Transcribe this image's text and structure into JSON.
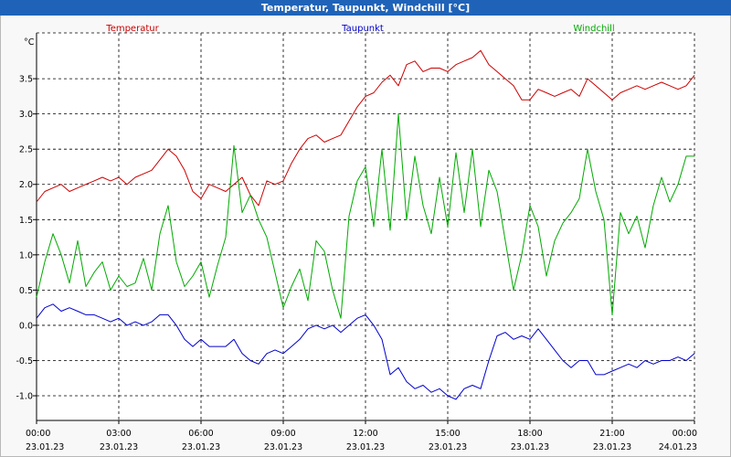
{
  "window": {
    "title": "Temperatur, Taupunkt, Windchill [°C]"
  },
  "chart_data": {
    "type": "line",
    "title": "Temperatur, Taupunkt, Windchill [°C]",
    "ylabel": "°C",
    "ylim": [
      -1.35,
      4.15
    ],
    "yticks": [
      "3.5",
      "3.0",
      "2.5",
      "2.0",
      "1.5",
      "1.0",
      "0.5",
      "0.0",
      "-0.5",
      "-1.0"
    ],
    "ytick_values": [
      3.5,
      3.0,
      2.5,
      2.0,
      1.5,
      1.0,
      0.5,
      0.0,
      -0.5,
      -1.0
    ],
    "xlim": [
      0,
      24
    ],
    "xtick_values": [
      0,
      3,
      6,
      9,
      12,
      15,
      18,
      21,
      24
    ],
    "xticks_time": [
      "00:00",
      "03:00",
      "06:00",
      "09:00",
      "12:00",
      "15:00",
      "18:00",
      "21:00",
      "00:00"
    ],
    "xticks_date": [
      "23.01.23",
      "23.01.23",
      "23.01.23",
      "23.01.23",
      "23.01.23",
      "23.01.23",
      "23.01.23",
      "23.01.23",
      "24.01.23"
    ],
    "grid": true,
    "legend_position": "top",
    "series": [
      {
        "name": "Temperatur",
        "color": "#cc0000",
        "x": [
          0,
          0.3,
          0.6,
          0.9,
          1.2,
          1.5,
          1.8,
          2.1,
          2.4,
          2.7,
          3.0,
          3.3,
          3.6,
          3.9,
          4.2,
          4.5,
          4.8,
          5.1,
          5.4,
          5.7,
          6.0,
          6.3,
          6.6,
          6.9,
          7.2,
          7.5,
          7.8,
          8.1,
          8.4,
          8.7,
          9.0,
          9.3,
          9.6,
          9.9,
          10.2,
          10.5,
          10.8,
          11.1,
          11.4,
          11.7,
          12.0,
          12.3,
          12.6,
          12.9,
          13.2,
          13.5,
          13.8,
          14.1,
          14.4,
          14.7,
          15.0,
          15.3,
          15.6,
          15.9,
          16.2,
          16.5,
          16.8,
          17.1,
          17.4,
          17.7,
          18.0,
          18.3,
          18.6,
          18.9,
          19.2,
          19.5,
          19.8,
          20.1,
          20.4,
          20.7,
          21.0,
          21.3,
          21.6,
          21.9,
          22.2,
          22.5,
          22.8,
          23.1,
          23.4,
          23.7,
          24.0
        ],
        "values": [
          1.75,
          1.9,
          1.95,
          2.0,
          1.9,
          1.95,
          2.0,
          2.05,
          2.1,
          2.05,
          2.1,
          2.0,
          2.1,
          2.15,
          2.2,
          2.35,
          2.5,
          2.4,
          2.2,
          1.9,
          1.8,
          2.0,
          1.95,
          1.9,
          2.0,
          2.1,
          1.85,
          1.7,
          2.05,
          2.0,
          2.05,
          2.3,
          2.5,
          2.65,
          2.7,
          2.6,
          2.65,
          2.7,
          2.9,
          3.1,
          3.25,
          3.3,
          3.45,
          3.55,
          3.4,
          3.7,
          3.75,
          3.6,
          3.65,
          3.65,
          3.6,
          3.7,
          3.75,
          3.8,
          3.9,
          3.7,
          3.6,
          3.5,
          3.4,
          3.2,
          3.2,
          3.35,
          3.3,
          3.25,
          3.3,
          3.35,
          3.25,
          3.5,
          3.4,
          3.3,
          3.2,
          3.3,
          3.35,
          3.4,
          3.35,
          3.4,
          3.45,
          3.4,
          3.35,
          3.4,
          3.55
        ]
      },
      {
        "name": "Taupunkt",
        "color": "#0000cc",
        "x": [
          0,
          0.3,
          0.6,
          0.9,
          1.2,
          1.5,
          1.8,
          2.1,
          2.4,
          2.7,
          3.0,
          3.3,
          3.6,
          3.9,
          4.2,
          4.5,
          4.8,
          5.1,
          5.4,
          5.7,
          6.0,
          6.3,
          6.6,
          6.9,
          7.2,
          7.5,
          7.8,
          8.1,
          8.4,
          8.7,
          9.0,
          9.3,
          9.6,
          9.9,
          10.2,
          10.5,
          10.8,
          11.1,
          11.4,
          11.7,
          12.0,
          12.3,
          12.6,
          12.9,
          13.2,
          13.5,
          13.8,
          14.1,
          14.4,
          14.7,
          15.0,
          15.3,
          15.6,
          15.9,
          16.2,
          16.5,
          16.8,
          17.1,
          17.4,
          17.7,
          18.0,
          18.3,
          18.6,
          18.9,
          19.2,
          19.5,
          19.8,
          20.1,
          20.4,
          20.7,
          21.0,
          21.3,
          21.6,
          21.9,
          22.2,
          22.5,
          22.8,
          23.1,
          23.4,
          23.7,
          24.0
        ],
        "values": [
          0.1,
          0.25,
          0.3,
          0.2,
          0.25,
          0.2,
          0.15,
          0.15,
          0.1,
          0.05,
          0.1,
          0.0,
          0.05,
          0.0,
          0.05,
          0.15,
          0.15,
          0.0,
          -0.2,
          -0.3,
          -0.2,
          -0.3,
          -0.3,
          -0.3,
          -0.2,
          -0.4,
          -0.5,
          -0.55,
          -0.4,
          -0.35,
          -0.4,
          -0.3,
          -0.2,
          -0.05,
          0.0,
          -0.05,
          0.0,
          -0.1,
          0.0,
          0.1,
          0.15,
          0.0,
          -0.2,
          -0.7,
          -0.6,
          -0.8,
          -0.9,
          -0.85,
          -0.95,
          -0.9,
          -1.0,
          -1.05,
          -0.9,
          -0.85,
          -0.9,
          -0.5,
          -0.15,
          -0.1,
          -0.2,
          -0.15,
          -0.2,
          -0.05,
          -0.2,
          -0.35,
          -0.5,
          -0.6,
          -0.5,
          -0.5,
          -0.7,
          -0.7,
          -0.65,
          -0.6,
          -0.55,
          -0.6,
          -0.5,
          -0.55,
          -0.5,
          -0.5,
          -0.45,
          -0.5,
          -0.4
        ]
      },
      {
        "name": "Windchill",
        "color": "#00aa00",
        "x": [
          0,
          0.3,
          0.6,
          0.9,
          1.2,
          1.5,
          1.8,
          2.1,
          2.4,
          2.7,
          3.0,
          3.3,
          3.6,
          3.9,
          4.2,
          4.5,
          4.8,
          5.1,
          5.4,
          5.7,
          6.0,
          6.3,
          6.6,
          6.9,
          7.2,
          7.5,
          7.8,
          8.1,
          8.4,
          8.7,
          9.0,
          9.3,
          9.6,
          9.9,
          10.2,
          10.5,
          10.8,
          11.1,
          11.4,
          11.7,
          12.0,
          12.3,
          12.6,
          12.9,
          13.2,
          13.5,
          13.8,
          14.1,
          14.4,
          14.7,
          15.0,
          15.3,
          15.6,
          15.9,
          16.2,
          16.5,
          16.8,
          17.1,
          17.4,
          17.7,
          18.0,
          18.3,
          18.6,
          18.9,
          19.2,
          19.5,
          19.8,
          20.1,
          20.4,
          20.7,
          21.0,
          21.3,
          21.6,
          21.9,
          22.2,
          22.5,
          22.8,
          23.1,
          23.4,
          23.7,
          24.0
        ],
        "values": [
          0.4,
          0.9,
          1.3,
          1.0,
          0.6,
          1.2,
          0.55,
          0.75,
          0.9,
          0.5,
          0.7,
          0.55,
          0.6,
          0.95,
          0.5,
          1.3,
          1.7,
          0.9,
          0.55,
          0.7,
          0.9,
          0.4,
          0.85,
          1.25,
          2.55,
          1.6,
          1.85,
          1.5,
          1.25,
          0.75,
          0.25,
          0.55,
          0.8,
          0.35,
          1.2,
          1.05,
          0.5,
          0.1,
          1.55,
          2.05,
          2.25,
          1.4,
          2.5,
          1.35,
          3.0,
          1.5,
          2.4,
          1.7,
          1.3,
          2.1,
          1.4,
          2.45,
          1.6,
          2.5,
          1.4,
          2.2,
          1.9,
          1.2,
          0.5,
          1.0,
          1.7,
          1.4,
          0.7,
          1.2,
          1.45,
          1.6,
          1.8,
          2.5,
          1.9,
          1.5,
          0.15,
          1.6,
          1.3,
          1.55,
          1.1,
          1.7,
          2.1,
          1.75,
          2.0,
          2.4,
          2.4
        ]
      }
    ]
  }
}
